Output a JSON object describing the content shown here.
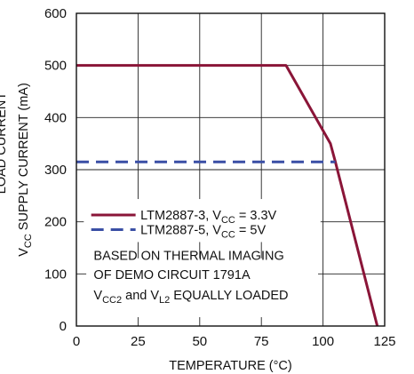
{
  "chart_data": {
    "type": "line",
    "xlabel": "TEMPERATURE (°C)",
    "ylabel": {
      "prefix": "V",
      "subscript": "CC",
      "suffix": " SUPPLY CURRENT (mA)"
    },
    "ylabel_cut": "LOAD CURRENT",
    "xlim": [
      0,
      125
    ],
    "ylim": [
      0,
      600
    ],
    "xticks": [
      0,
      25,
      50,
      75,
      100,
      125
    ],
    "yticks": [
      0,
      100,
      200,
      300,
      400,
      500,
      600
    ],
    "grid": true,
    "series": [
      {
        "name": "LTM2887-3, V_CC = 3.3V",
        "legend_parts": [
          "LTM2887-3, V",
          "CC",
          " = 3.3V"
        ],
        "color": "#8a1538",
        "dash": "solid",
        "x": [
          0,
          85,
          103,
          105,
          122
        ],
        "y": [
          500,
          500,
          350,
          315,
          0
        ]
      },
      {
        "name": "LTM2887-5, V_CC = 5V",
        "legend_parts": [
          "LTM2887-5, V",
          "CC",
          " = 5V"
        ],
        "color": "#3a4fa5",
        "dash": "dashed",
        "x": [
          0,
          105
        ],
        "y": [
          315,
          315
        ]
      }
    ],
    "annotation": {
      "line1": "BASED ON THERMAL IMAGING",
      "line2": "OF DEMO CIRCUIT 1791A",
      "line3_parts": [
        "V",
        "CC2",
        " and V",
        "L2",
        " EQUALLY LOADED"
      ]
    }
  }
}
